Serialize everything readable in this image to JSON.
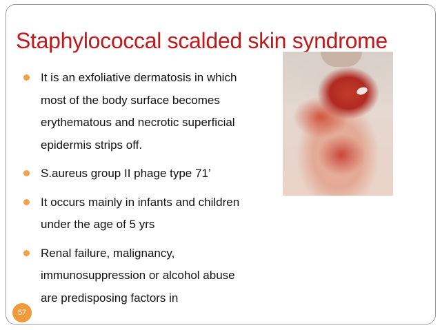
{
  "slide": {
    "title": "Staphylococcal scalded skin syndrome",
    "bullets": [
      "It is an exfoliative dermatosis in which most of the body surface becomes erythematous and necrotic superficial epidermis strips off.",
      "S.aureus group II phage type 71’",
      "It occurs mainly in infants and children under the age of 5 yrs",
      "Renal failure, malignancy, immunosuppression or alcohol abuse are predisposing factors in"
    ],
    "slide_number": "57"
  },
  "colors": {
    "title": "#c0191c",
    "bullet_marker": "#f2a24a",
    "slide_number_badge": "#f09a3a"
  }
}
